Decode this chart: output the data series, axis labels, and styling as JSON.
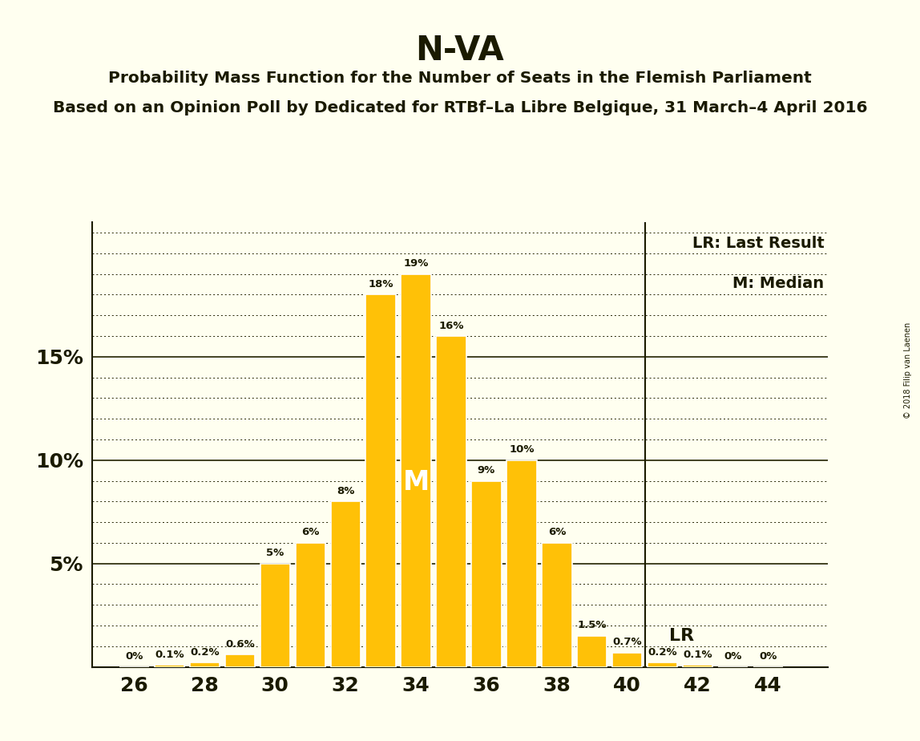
{
  "title": "N-VA",
  "subtitle1": "Probability Mass Function for the Number of Seats in the Flemish Parliament",
  "subtitle2": "Based on an Opinion Poll by Dedicated for RTBf–La Libre Belgique, 31 March–4 April 2016",
  "copyright": "© 2018 Filip van Laenen",
  "legend_lr": "LR: Last Result",
  "legend_m": "M: Median",
  "seats": [
    26,
    27,
    28,
    29,
    30,
    31,
    32,
    33,
    34,
    35,
    36,
    37,
    38,
    39,
    40,
    41,
    42,
    43,
    44
  ],
  "probabilities": [
    0.0,
    0.1,
    0.2,
    0.6,
    5.0,
    6.0,
    8.0,
    18.0,
    19.0,
    16.0,
    9.0,
    10.0,
    6.0,
    1.5,
    0.7,
    0.2,
    0.1,
    0.0,
    0.0
  ],
  "bar_color": "#FFC107",
  "bar_edge_color": "#FFFFFF",
  "background_color": "#FFFFF0",
  "text_color": "#1a1a00",
  "median_seat": 34,
  "last_result_seat": 40,
  "median_label": "M",
  "lr_label": "LR",
  "ylim_max": 21.5,
  "ytick_labels": [
    5,
    10,
    15
  ],
  "ytick_values": [
    5,
    10,
    15
  ],
  "solid_lines": [
    5,
    10,
    15
  ],
  "dotted_lines": [
    1,
    2,
    3,
    4,
    6,
    7,
    8,
    9,
    11,
    12,
    13,
    14,
    16,
    17,
    18,
    19,
    20,
    21
  ],
  "xticks": [
    26,
    28,
    30,
    32,
    34,
    36,
    38,
    40,
    42,
    44
  ],
  "grid_color": "#222200",
  "prob_labels": [
    "0%",
    "0.1%",
    "0.2%",
    "0.6%",
    "5%",
    "6%",
    "8%",
    "18%",
    "19%",
    "16%",
    "9%",
    "10%",
    "6%",
    "1.5%",
    "0.7%",
    "0.2%",
    "0.1%",
    "0%",
    "0%"
  ]
}
